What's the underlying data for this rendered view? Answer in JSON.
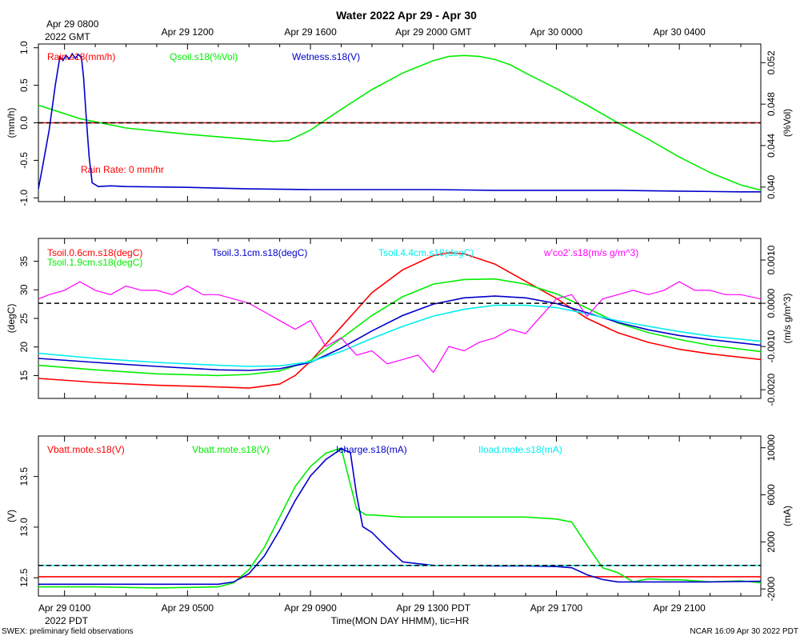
{
  "title": "Water 2022 Apr 29 - Apr 30",
  "top_axis": {
    "first_label": [
      "Apr 29 0800",
      "2022 GMT"
    ],
    "labels": [
      "Apr 29 1200",
      "Apr 29 1600",
      "Apr 29 2000 GMT",
      "Apr 30 0000",
      "Apr 30 0400"
    ]
  },
  "bottom_axis": {
    "first_label": [
      "Apr 29 0100",
      "2022 PDT"
    ],
    "labels": [
      "Apr 29 0500",
      "Apr 29 0900",
      "Apr 29 1300 PDT",
      "Apr 29 1700",
      "Apr 29 2100"
    ],
    "xlabel": "Time(MON DAY HHMM), tic=HR"
  },
  "footer": {
    "left": "SWEX: preliminary field observations",
    "right": "NCAR 16:09 Apr 30 2022 PDT"
  },
  "colors": {
    "red": "#ff0000",
    "green": "#00ee00",
    "blue": "#0000cc",
    "cyan": "#00eeee",
    "magenta": "#ff00ff",
    "black": "#000000"
  },
  "chart_data": [
    {
      "type": "line",
      "panel": "water",
      "x_unit": "hours since Apr 29 0000 PDT",
      "xlim": [
        0.15,
        23.65
      ],
      "left_axis": {
        "label": "(mm/h)",
        "range": [
          -1.05,
          1.05
        ],
        "ticks": [
          "-1.0",
          "-0.5",
          "0.0",
          "0.5",
          "1.0"
        ],
        "tick_values": [
          -1,
          -0.5,
          0,
          0.5,
          1
        ]
      },
      "right_axis": {
        "label": "(%Vol)",
        "range": [
          0.0386,
          0.0538
        ],
        "ticks": [
          "0.040",
          "0.044",
          "0.048",
          "0.052"
        ],
        "tick_values": [
          0.04,
          0.044,
          0.048,
          0.052
        ]
      },
      "legend": [
        "Rain.s18(mm/h)",
        "Qsoil.s18(%Vol)",
        "Wetness.s18(V)"
      ],
      "annotation": "Rain Rate: 0 mm/hr",
      "zero_line": 0,
      "series": [
        {
          "name": "Rain.s18(mm/h)",
          "axis": "left",
          "color": "red",
          "x": [
            0.15,
            23.65
          ],
          "y": [
            0,
            0
          ]
        },
        {
          "name": "Qsoil.s18(%Vol)",
          "axis": "right",
          "color": "green",
          "x": [
            0.15,
            1.5,
            3,
            5,
            7,
            7.8,
            8.3,
            9,
            10,
            11,
            12,
            13,
            13.5,
            14,
            14.5,
            15,
            15.5,
            16,
            17,
            18,
            19,
            20,
            21,
            22,
            23,
            23.65
          ],
          "y": [
            0.0479,
            0.0466,
            0.0457,
            0.0451,
            0.0446,
            0.0444,
            0.0445,
            0.0455,
            0.0475,
            0.0494,
            0.051,
            0.0522,
            0.0526,
            0.0527,
            0.0526,
            0.0523,
            0.0518,
            0.051,
            0.0495,
            0.0479,
            0.0462,
            0.0446,
            0.0429,
            0.0414,
            0.0402,
            0.0397
          ]
        },
        {
          "name": "Wetness.s18(V)",
          "axis": "left",
          "color": "blue",
          "x": [
            0.15,
            0.3,
            0.5,
            0.7,
            0.85,
            0.95,
            1.05,
            1.15,
            1.25,
            1.35,
            1.45,
            1.55,
            1.62,
            1.7,
            1.8,
            1.9,
            2.1,
            2.5,
            3,
            5,
            7,
            9,
            11,
            13,
            15,
            17,
            19,
            21,
            23,
            23.65
          ],
          "y": [
            -0.88,
            -0.55,
            -0.1,
            0.5,
            0.88,
            0.83,
            0.9,
            0.85,
            0.92,
            0.86,
            0.91,
            0.87,
            0.6,
            0.1,
            -0.45,
            -0.8,
            -0.85,
            -0.84,
            -0.85,
            -0.86,
            -0.88,
            -0.89,
            -0.89,
            -0.89,
            -0.9,
            -0.9,
            -0.9,
            -0.91,
            -0.92,
            -0.92
          ]
        }
      ]
    },
    {
      "type": "line",
      "panel": "soil temperature / flux",
      "x_unit": "hours since Apr 29 0000 PDT",
      "xlim": [
        0.15,
        23.65
      ],
      "left_axis": {
        "label": "(degC)",
        "range": [
          11,
          39
        ],
        "ticks": [
          "15",
          "20",
          "25",
          "30",
          "35"
        ],
        "tick_values": [
          15,
          20,
          25,
          30,
          35
        ]
      },
      "right_axis": {
        "label": "(m/s g/m^3)",
        "range": [
          -0.0022,
          0.0015
        ],
        "ticks": [
          "-0.0020",
          "-0.0010",
          "0.0000",
          "0.0010"
        ],
        "tick_values": [
          -0.002,
          -0.001,
          0,
          0.001
        ]
      },
      "legend": [
        "Tsoil.0.6cm.s18(degC)",
        "Tsoil.1.9cm.s18(degC)",
        "Tsoil.3.1cm.s18(degC)",
        "Tsoil.4.4cm.s18(degC)",
        "w'co2'.s18(m/s g/m^3)"
      ],
      "zero_line": 0,
      "series": [
        {
          "name": "Tsoil.0.6cm.s18(degC)",
          "axis": "left",
          "color": "red",
          "x": [
            0.15,
            2,
            4,
            6,
            7,
            8,
            8.5,
            9,
            10,
            11,
            12,
            13,
            13.5,
            14,
            15,
            16,
            17,
            18,
            19,
            20,
            21,
            22,
            23.65
          ],
          "y": [
            14.5,
            13.8,
            13.3,
            13.0,
            12.8,
            13.5,
            15,
            17.5,
            23.5,
            29.5,
            33.5,
            36,
            36.5,
            36.3,
            34.5,
            31.5,
            28.5,
            25,
            22.5,
            20.8,
            19.6,
            18.8,
            17.8
          ]
        },
        {
          "name": "Tsoil.1.9cm.s18(degC)",
          "axis": "left",
          "color": "green",
          "x": [
            0.15,
            2,
            4,
            6,
            7,
            8,
            9,
            10,
            11,
            12,
            13,
            14,
            15,
            16,
            17,
            18,
            19,
            20,
            21,
            22,
            23.65
          ],
          "y": [
            16.8,
            16.0,
            15.3,
            15.0,
            15.2,
            15.8,
            17.6,
            21.5,
            25.5,
            28.8,
            31,
            31.8,
            31.9,
            31,
            29.3,
            26.8,
            24.2,
            22.5,
            21.3,
            20.3,
            19.2
          ]
        },
        {
          "name": "Tsoil.3.1cm.s18(degC)",
          "axis": "left",
          "color": "blue",
          "x": [
            0.15,
            2,
            4,
            6,
            7,
            8,
            9,
            10,
            11,
            12,
            13,
            14,
            15,
            16,
            17,
            18,
            19,
            20,
            21,
            22,
            23.65
          ],
          "y": [
            18.0,
            17.3,
            16.6,
            16.0,
            15.9,
            16.2,
            17.3,
            19.8,
            22.8,
            25.5,
            27.5,
            28.6,
            28.9,
            28.6,
            27.6,
            26,
            24.3,
            23,
            22,
            21.3,
            20.3
          ]
        },
        {
          "name": "Tsoil.4.4cm.s18(degC)",
          "axis": "left",
          "color": "cyan",
          "x": [
            0.15,
            2,
            4,
            6,
            7,
            8,
            9,
            10,
            11,
            12,
            13,
            14,
            15,
            16,
            17,
            18,
            19,
            20,
            21,
            22,
            23.65
          ],
          "y": [
            18.9,
            18.0,
            17.3,
            16.8,
            16.6,
            16.7,
            17.4,
            19.2,
            21.5,
            23.6,
            25.4,
            26.6,
            27.3,
            27.3,
            26.9,
            25.8,
            24.6,
            23.6,
            22.7,
            21.9,
            21.0
          ]
        },
        {
          "name": "w'co2'.s18(m/s g/m^3)",
          "axis": "right",
          "color": "magenta",
          "x": [
            0.15,
            0.5,
            1,
            1.5,
            2,
            2.5,
            3,
            3.5,
            4,
            4.5,
            5,
            5.5,
            6,
            6.5,
            7,
            7.5,
            8,
            8.5,
            9,
            9.5,
            10,
            10.5,
            11,
            11.5,
            12,
            12.5,
            13,
            13.5,
            14,
            14.5,
            15,
            15.5,
            16,
            16.5,
            17,
            17.5,
            18,
            18.5,
            19,
            19.5,
            20,
            20.5,
            21,
            21.5,
            22,
            22.5,
            23,
            23.65
          ],
          "y": [
            0.0001,
            0.0002,
            0.0003,
            0.0005,
            0.0003,
            0.0002,
            0.0004,
            0.0003,
            0.0003,
            0.0002,
            0.0004,
            0.0002,
            0.0002,
            0.0001,
            0.0,
            -0.0002,
            -0.0004,
            -0.0006,
            -0.0004,
            -0.001,
            -0.0008,
            -0.0012,
            -0.0011,
            -0.0014,
            -0.0013,
            -0.0012,
            -0.0016,
            -0.001,
            -0.0011,
            -0.0009,
            -0.0008,
            -0.0006,
            -0.0007,
            -0.0003,
            0.0001,
            0.0002,
            -0.0003,
            0.0001,
            0.0002,
            0.0003,
            0.0002,
            0.0003,
            0.0005,
            0.0003,
            0.0003,
            0.0002,
            0.0002,
            0.0001
          ]
        }
      ]
    },
    {
      "type": "line",
      "panel": "power",
      "x_unit": "hours since Apr 29 0000 PDT",
      "xlim": [
        0.15,
        23.65
      ],
      "left_axis": {
        "label": "(V)",
        "range": [
          12.32,
          13.9
        ],
        "ticks": [
          "12.5",
          "13.0",
          "13.5"
        ],
        "tick_values": [
          12.5,
          13.0,
          13.5
        ]
      },
      "right_axis": {
        "label": "(mA)",
        "range": [
          -2600,
          11000
        ],
        "ticks": [
          "-2000",
          "2000",
          "6000",
          "10000"
        ],
        "tick_values": [
          -2000,
          2000,
          6000,
          10000
        ]
      },
      "legend": [
        "Vbatt.mote.s18(V)",
        "Vbatt.mote.s18(V)",
        "Icharge.s18(mA)",
        "Iload.mote.s18(mA)"
      ],
      "zero_line": 0,
      "series": [
        {
          "name": "Vbatt.mote.s18(V)",
          "axis": "left",
          "color": "red",
          "x": [
            0.15,
            23.65
          ],
          "y": [
            12.51,
            12.51
          ]
        },
        {
          "name": "Vbatt.mote.s18(V)",
          "axis": "left",
          "color": "green",
          "x": [
            0.15,
            2,
            4,
            6,
            6.5,
            7,
            7.5,
            8,
            8.5,
            9,
            9.5,
            10,
            10.5,
            10.8,
            11,
            12,
            13,
            14,
            15,
            16,
            17,
            17.5,
            18,
            18.5,
            19,
            19.5,
            20,
            20.5,
            21,
            22,
            23,
            23.65
          ],
          "y": [
            12.41,
            12.41,
            12.4,
            12.41,
            12.45,
            12.58,
            12.8,
            13.1,
            13.4,
            13.6,
            13.73,
            13.78,
            13.18,
            13.12,
            13.12,
            13.1,
            13.1,
            13.1,
            13.1,
            13.1,
            13.08,
            13.05,
            12.82,
            12.6,
            12.55,
            12.46,
            12.49,
            12.48,
            12.48,
            12.46,
            12.47,
            12.45
          ]
        },
        {
          "name": "Icharge.s18(mA)",
          "axis": "right",
          "color": "blue",
          "x": [
            0.15,
            2,
            4,
            6,
            6.5,
            7,
            7.5,
            8,
            8.5,
            9,
            9.5,
            10,
            10.3,
            10.5,
            10.7,
            11,
            11.5,
            12,
            13,
            14,
            15,
            16,
            17,
            17.5,
            18,
            18.5,
            19,
            20,
            22,
            23.65
          ],
          "y": [
            -1600,
            -1600,
            -1600,
            -1600,
            -1400,
            -700,
            800,
            3000,
            5500,
            7600,
            9000,
            9900,
            9600,
            6000,
            3300,
            2800,
            1500,
            300,
            0,
            0,
            -50,
            -50,
            -100,
            -200,
            -800,
            -1200,
            -1400,
            -1400,
            -1400,
            -1350
          ]
        },
        {
          "name": "Iload.mote.s18(mA)",
          "axis": "right",
          "color": "cyan",
          "x": [
            0.15,
            23.65
          ],
          "y": [
            0,
            0
          ]
        }
      ]
    }
  ]
}
